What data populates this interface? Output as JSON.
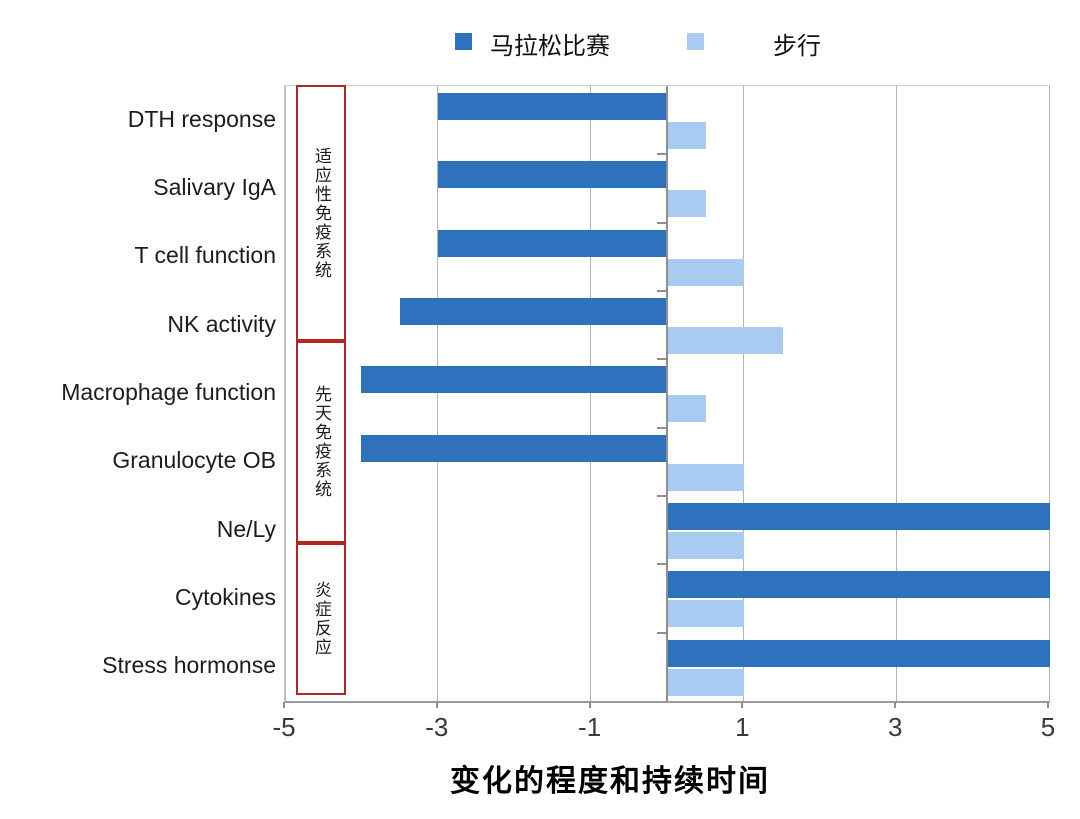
{
  "legend": {
    "items": [
      {
        "label": "马拉松比赛",
        "color": "#2E71BC"
      },
      {
        "label": "步行",
        "color": "#A9CBF1"
      }
    ]
  },
  "chart_data": {
    "type": "bar",
    "orientation": "horizontal",
    "title": "",
    "xlabel": "变化的程度和持续时间",
    "ylabel": "",
    "xlim": [
      -5,
      5
    ],
    "xticks": [
      -5,
      -3,
      -1,
      1,
      3,
      5
    ],
    "grid": true,
    "legend_position": "top",
    "categories": [
      "DTH response",
      "Salivary IgA",
      "T cell function",
      "NK activity",
      "Macrophage function",
      "Granulocyte OB",
      "Ne/Ly",
      "Cytokines",
      "Stress hormonse"
    ],
    "series": [
      {
        "name": "马拉松比赛",
        "color": "#2E71BC",
        "values": [
          -3,
          -3,
          -3,
          -3.5,
          -4,
          -4,
          5,
          5,
          5
        ]
      },
      {
        "name": "步行",
        "color": "#A9CBF1",
        "values": [
          0.5,
          0.5,
          1,
          1.5,
          0.5,
          1,
          1,
          1,
          1
        ]
      }
    ],
    "groups": [
      {
        "label": "适应性免疫系统",
        "categories": [
          "DTH response",
          "Salivary IgA",
          "T cell function",
          "NK activity"
        ]
      },
      {
        "label": "先天免疫系统",
        "categories": [
          "Macrophage function",
          "Granulocyte OB",
          "Ne/Ly"
        ]
      },
      {
        "label": "炎症反应",
        "categories": [
          "Cytokines",
          "Stress hormonse"
        ]
      }
    ],
    "group_box_color": "#B2281E"
  }
}
